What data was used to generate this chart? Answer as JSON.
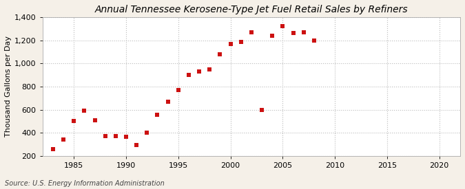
{
  "title": "Annual Tennessee Kerosene-Type Jet Fuel Retail Sales by Refiners",
  "ylabel": "Thousand Gallons per Day",
  "source": "Source: U.S. Energy Information Administration",
  "background_color": "#f5f0e8",
  "plot_bg_color": "#ffffff",
  "marker_color": "#cc1111",
  "years": [
    1983,
    1984,
    1985,
    1986,
    1987,
    1988,
    1989,
    1990,
    1991,
    1992,
    1993,
    1994,
    1995,
    1996,
    1997,
    1998,
    1999,
    2000,
    2001,
    2002,
    2003,
    2004,
    2005,
    2006,
    2007,
    2008
  ],
  "values": [
    260,
    340,
    500,
    590,
    510,
    375,
    370,
    365,
    295,
    400,
    555,
    670,
    770,
    900,
    930,
    950,
    1080,
    1170,
    1185,
    1270,
    600,
    1240,
    1320,
    1265,
    1270,
    1200
  ],
  "xlim": [
    1982,
    2022
  ],
  "ylim": [
    200,
    1400
  ],
  "yticks": [
    200,
    400,
    600,
    800,
    1000,
    1200,
    1400
  ],
  "xticks": [
    1985,
    1990,
    1995,
    2000,
    2005,
    2010,
    2015,
    2020
  ],
  "grid_color": "#bbbbbb",
  "title_fontsize": 10,
  "label_fontsize": 8,
  "tick_fontsize": 8,
  "source_fontsize": 7
}
